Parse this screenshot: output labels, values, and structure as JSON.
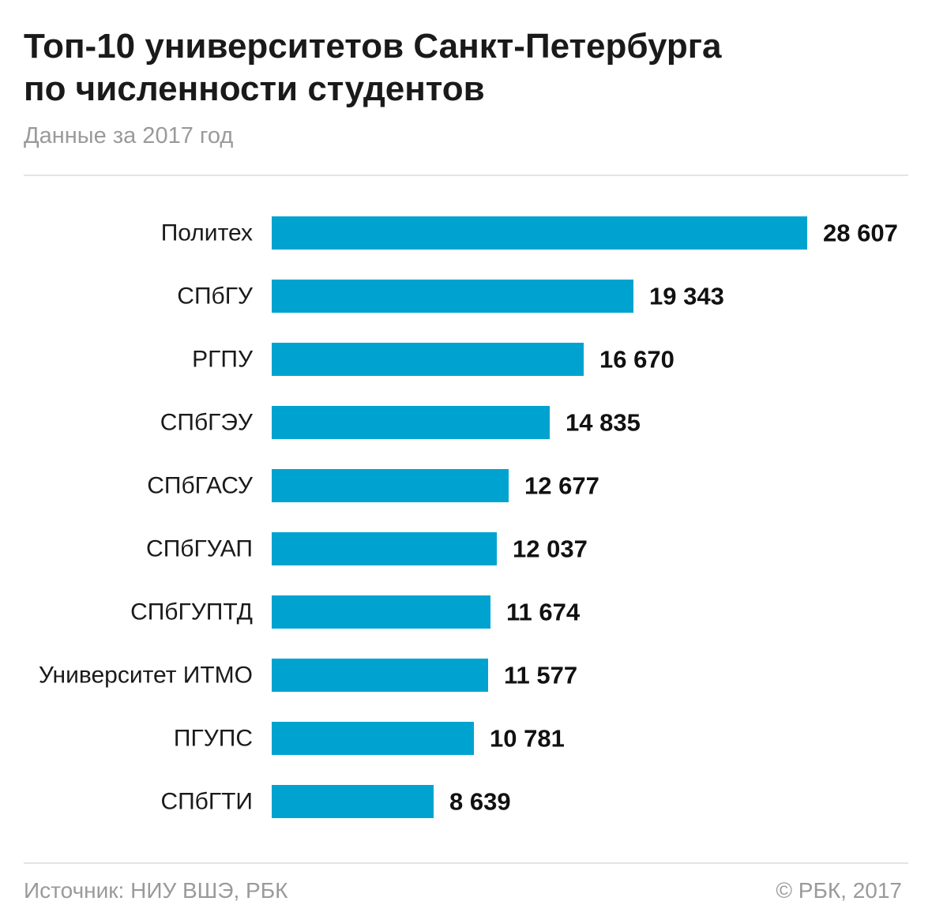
{
  "header": {
    "title_line1": "Топ-10 университетов Санкт-Петербурга",
    "title_line2": "по численности студентов",
    "subtitle": "Данные за 2017 год"
  },
  "footer": {
    "source": "Источник: НИУ ВШЭ, РБК",
    "copyright": "© РБК, 2017"
  },
  "colors": {
    "bar": "#00a3cf"
  },
  "chart_data": {
    "type": "bar",
    "orientation": "horizontal",
    "categories": [
      "Политех",
      "СПбГУ",
      "РГПУ",
      "СПбГЭУ",
      "СПбГАСУ",
      "СПбГУАП",
      "СПбГУПТД",
      "Университет ИТМО",
      "ПГУПС",
      "СПбГТИ"
    ],
    "values": [
      28607,
      19343,
      16670,
      14835,
      12677,
      12037,
      11674,
      11577,
      10781,
      8639
    ],
    "value_labels": [
      "28 607",
      "19 343",
      "16 670",
      "14 835",
      "12 677",
      "12 037",
      "11 674",
      "11 577",
      "10 781",
      "8 639"
    ],
    "title": "Топ-10 университетов Санкт-Петербурга по численности студентов",
    "subtitle": "Данные за 2017 год",
    "xlabel": "",
    "ylabel": "",
    "grid": false,
    "legend": "none"
  }
}
